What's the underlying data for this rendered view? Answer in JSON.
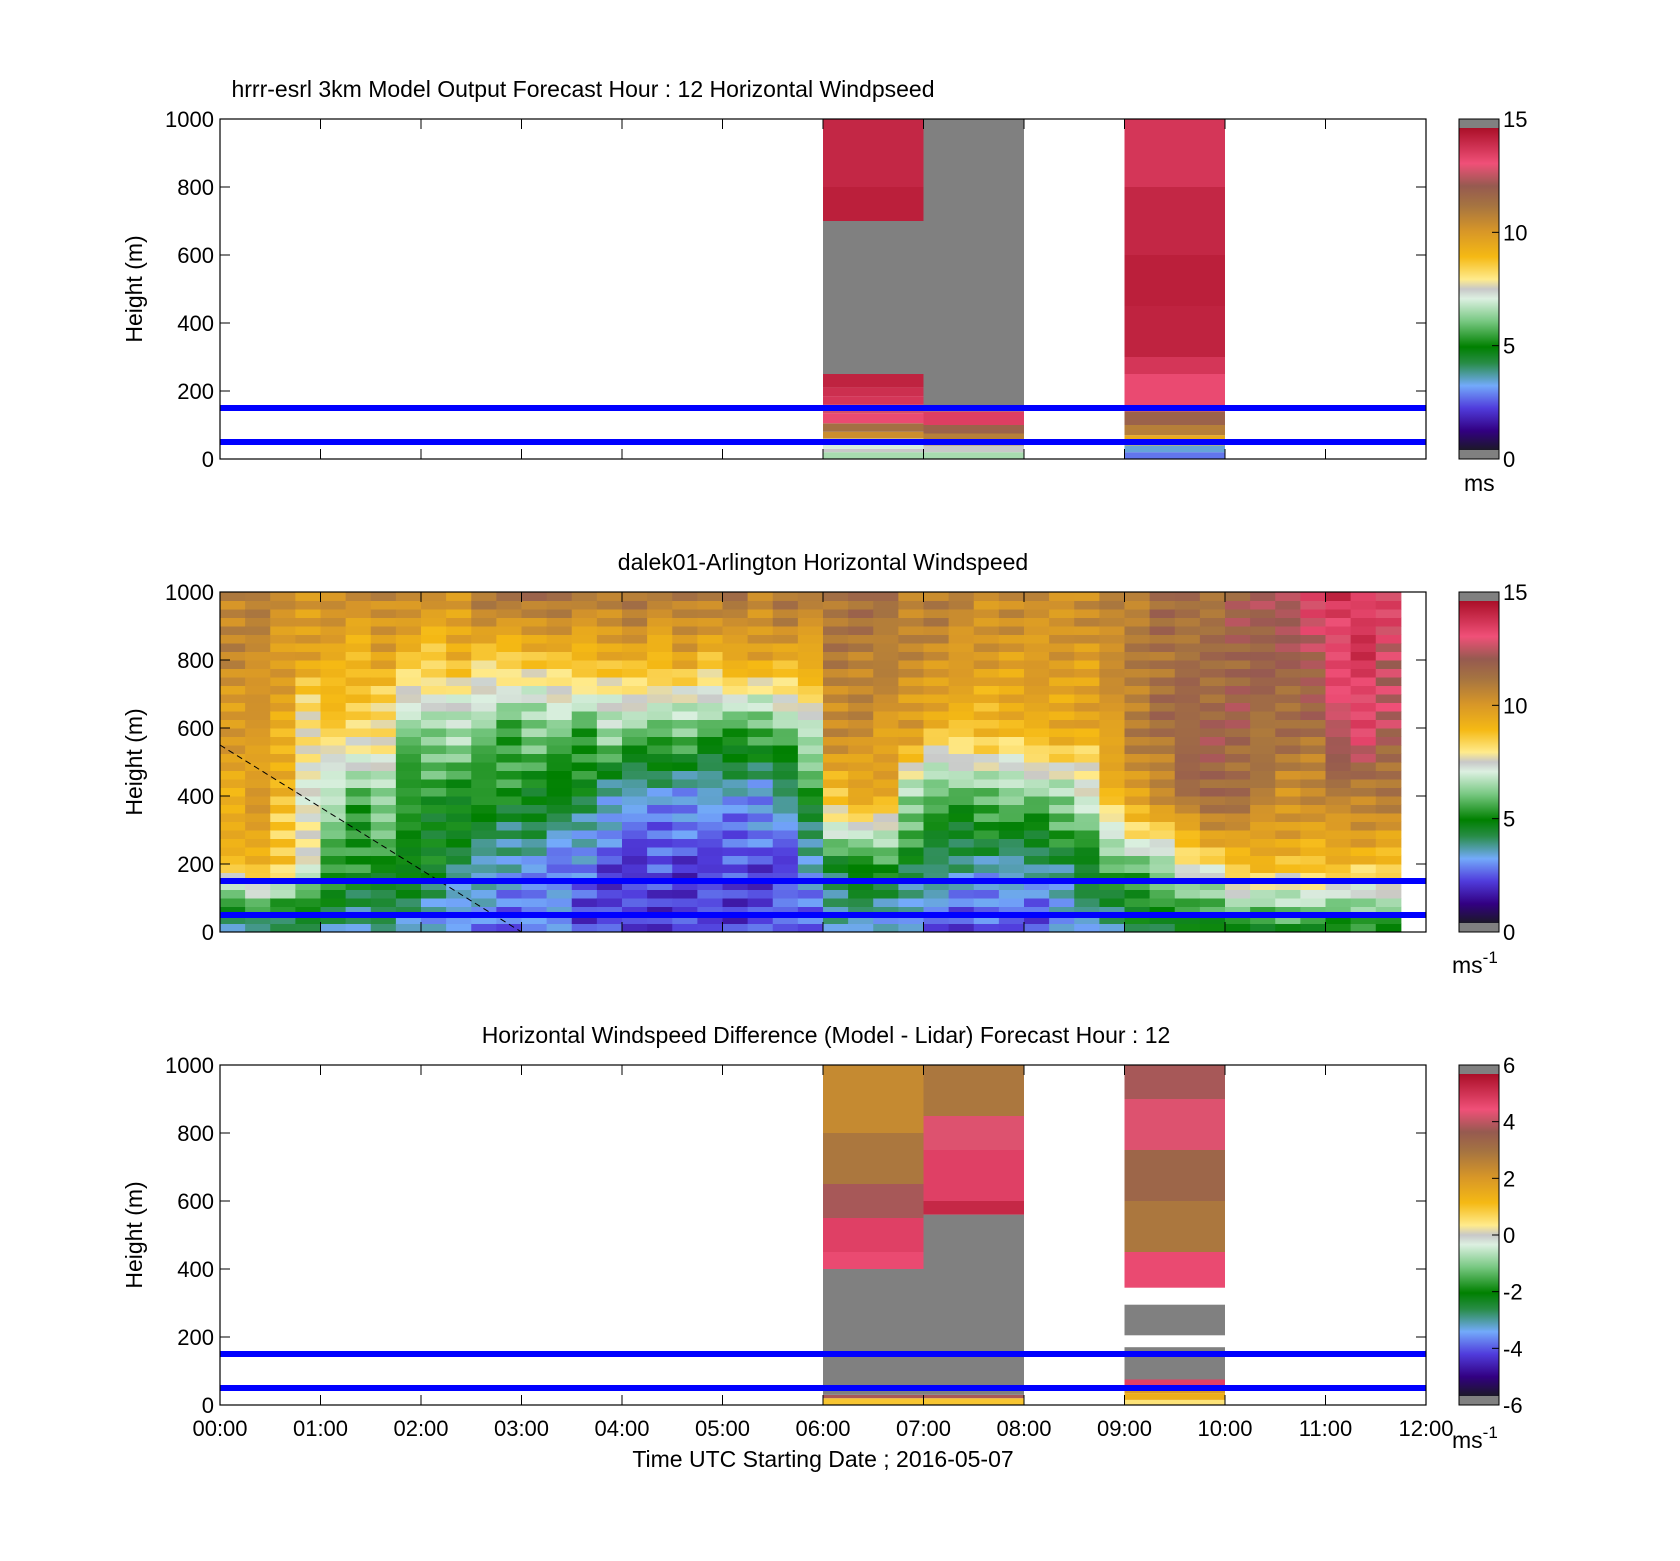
{
  "figure": {
    "xlabel": "Time UTC  Starting Date ; 2016-05-07"
  },
  "chart_data": [
    {
      "type": "heatmap",
      "title": "hrrr-esrl 3km Model Output   Forecast Hour : 12 Horizontal Windpseed",
      "ylabel": "Height (m)",
      "xlabel": "",
      "xlim": [
        0,
        12
      ],
      "ylim": [
        0,
        1000
      ],
      "yticks": [
        "0",
        "200",
        "400",
        "600",
        "800",
        "1000"
      ],
      "xticks": [],
      "colorbar": {
        "min": 0,
        "max": 15,
        "ticks": [
          "0",
          "5",
          "10",
          "15"
        ],
        "unit": "ms",
        "unit_sup": ""
      },
      "blue_lines_m": [
        50,
        150
      ],
      "missing_color": "#808080",
      "columns": [
        {
          "t0": 6,
          "t1": 7,
          "cells": [
            [
              0,
              20,
              6.5
            ],
            [
              20,
              30,
              7.5
            ],
            [
              30,
              60,
              7.0
            ],
            [
              60,
              80,
              10.5
            ],
            [
              80,
              105,
              11.5
            ],
            [
              105,
              135,
              13.5
            ],
            [
              135,
              160,
              13.0
            ],
            [
              160,
              185,
              14.0
            ],
            [
              185,
              210,
              14.2
            ],
            [
              210,
              250,
              14.5
            ],
            [
              250,
              700,
              null
            ],
            [
              700,
              800,
              14.6
            ],
            [
              800,
              1000,
              14.4
            ]
          ]
        },
        {
          "t0": 7,
          "t1": 8,
          "cells": [
            [
              0,
              20,
              6.5
            ],
            [
              20,
              40,
              7.5
            ],
            [
              40,
              75,
              11.0
            ],
            [
              75,
              100,
              12.0
            ],
            [
              100,
              140,
              13.8
            ],
            [
              140,
              1000,
              null
            ]
          ]
        },
        {
          "t0": 9,
          "t1": 10,
          "cells": [
            [
              0,
              20,
              2.5
            ],
            [
              20,
              40,
              3.2
            ],
            [
              40,
              70,
              9.5
            ],
            [
              70,
              100,
              11.0
            ],
            [
              100,
              140,
              12.0
            ],
            [
              140,
              250,
              13.5
            ],
            [
              250,
              300,
              14.0
            ],
            [
              300,
              450,
              14.5
            ],
            [
              450,
              600,
              14.6
            ],
            [
              600,
              800,
              14.4
            ],
            [
              800,
              1000,
              14.0
            ]
          ]
        }
      ]
    },
    {
      "type": "heatmap",
      "title": "dalek01-Arlington  Horizontal Windspeed",
      "ylabel": "Height (m)",
      "xlabel": "",
      "xlim": [
        0,
        12
      ],
      "ylim": [
        0,
        1000
      ],
      "yticks": [
        "0",
        "200",
        "400",
        "600",
        "800",
        "1000"
      ],
      "xticks": [],
      "colorbar": {
        "min": 0,
        "max": 15,
        "ticks": [
          "0",
          "5",
          "10",
          "15"
        ],
        "unit": "ms",
        "unit_sup": "-1"
      },
      "blue_lines_m": [
        50,
        150
      ],
      "dashed_line": {
        "x": [
          0,
          3.0
        ],
        "y": [
          550,
          0
        ]
      },
      "profile_step_hours": 0.25,
      "profile_end_hours": 11.75,
      "profile_jitter": 0.9,
      "profiles": [
        [
          2.5,
          9.0,
          9.5,
          10.0,
          10.5,
          11.0
        ],
        [
          3.0,
          9.5,
          10.0,
          10.0,
          10.5,
          11.0
        ],
        [
          3.5,
          8.5,
          9.0,
          9.5,
          10.0,
          10.5
        ],
        [
          3.5,
          7.5,
          7.5,
          7.8,
          9.5,
          10.5
        ],
        [
          3.5,
          5.5,
          6.5,
          8.5,
          9.5,
          10.5
        ],
        [
          3.5,
          5.0,
          5.5,
          8.5,
          9.0,
          10.5
        ],
        [
          3.5,
          5.0,
          6.5,
          8.0,
          9.5,
          11.0
        ],
        [
          3.0,
          5.0,
          5.0,
          6.0,
          9.0,
          10.5
        ],
        [
          3.0,
          4.5,
          5.0,
          6.5,
          8.5,
          10.5
        ],
        [
          2.5,
          4.0,
          5.0,
          6.5,
          9.0,
          10.5
        ],
        [
          2.5,
          3.5,
          5.0,
          6.0,
          8.5,
          11.5
        ],
        [
          2.5,
          3.0,
          5.0,
          5.5,
          8.5,
          11.5
        ],
        [
          2.5,
          3.0,
          4.8,
          6.0,
          8.5,
          12.0
        ],
        [
          3.0,
          2.5,
          4.5,
          6.0,
          9.0,
          11.5
        ],
        [
          2.0,
          2.5,
          4.5,
          5.5,
          9.0,
          11.0
        ],
        [
          2.0,
          2.0,
          3.5,
          6.5,
          9.0,
          11.5
        ],
        [
          2.0,
          1.8,
          3.0,
          6.0,
          9.5,
          11.5
        ],
        [
          2.0,
          2.0,
          3.0,
          6.0,
          9.0,
          11.0
        ],
        [
          2.0,
          1.8,
          3.0,
          6.0,
          9.5,
          11.5
        ],
        [
          2.0,
          2.0,
          3.0,
          5.5,
          9.0,
          11.0
        ],
        [
          2.0,
          2.0,
          3.0,
          5.5,
          9.5,
          11.5
        ],
        [
          2.0,
          2.0,
          3.0,
          5.5,
          9.5,
          11.0
        ],
        [
          2.5,
          2.0,
          3.5,
          6.0,
          9.5,
          11.5
        ],
        [
          2.5,
          3.0,
          5.0,
          7.0,
          9.5,
          11.0
        ],
        [
          3.0,
          4.5,
          9.0,
          10.5,
          11.0,
          11.5
        ],
        [
          3.0,
          5.0,
          9.5,
          10.5,
          11.0,
          11.5
        ],
        [
          3.0,
          5.0,
          9.5,
          10.0,
          11.0,
          11.5
        ],
        [
          2.5,
          4.5,
          6.5,
          10.0,
          10.5,
          11.0
        ],
        [
          2.0,
          4.0,
          5.5,
          9.0,
          10.5,
          11.0
        ],
        [
          2.0,
          3.5,
          5.5,
          9.0,
          10.0,
          11.0
        ],
        [
          2.0,
          3.5,
          6.0,
          9.0,
          10.0,
          10.5
        ],
        [
          2.0,
          3.5,
          6.0,
          9.0,
          10.0,
          10.5
        ],
        [
          2.0,
          3.5,
          6.0,
          9.5,
          10.0,
          10.5
        ],
        [
          2.5,
          4.0,
          6.5,
          9.5,
          10.0,
          10.5
        ],
        [
          3.0,
          4.5,
          7.0,
          9.5,
          10.0,
          10.5
        ],
        [
          3.5,
          5.5,
          9.0,
          10.0,
          10.5,
          11.0
        ],
        [
          4.0,
          6.0,
          10.0,
          11.0,
          11.0,
          11.0
        ],
        [
          4.0,
          6.5,
          10.5,
          11.5,
          11.5,
          11.5
        ],
        [
          4.5,
          7.5,
          11.5,
          12.0,
          11.5,
          11.5
        ],
        [
          4.0,
          8.0,
          12.0,
          12.0,
          11.5,
          11.5
        ],
        [
          4.5,
          9.0,
          11.5,
          12.0,
          12.0,
          12.0
        ],
        [
          4.5,
          9.0,
          11.0,
          11.5,
          12.0,
          12.5
        ],
        [
          4.5,
          9.0,
          10.5,
          11.5,
          12.0,
          13.0
        ],
        [
          4.5,
          9.0,
          10.5,
          11.5,
          12.5,
          13.5
        ],
        [
          4.5,
          9.0,
          11.0,
          13.0,
          13.5,
          14.0
        ],
        [
          4.5,
          9.0,
          11.0,
          13.5,
          14.0,
          14.0
        ],
        [
          4.5,
          9.0,
          11.0,
          12.5,
          13.0,
          13.5
        ]
      ]
    },
    {
      "type": "heatmap",
      "title": "Horizontal Windspeed Difference (Model - Lidar) Forecast Hour : 12",
      "ylabel": "Height (m)",
      "xlabel": "",
      "xlim": [
        0,
        12
      ],
      "ylim": [
        0,
        1000
      ],
      "yticks": [
        "0",
        "200",
        "400",
        "600",
        "800",
        "1000"
      ],
      "xticks": [
        "00:00",
        "01:00",
        "02:00",
        "03:00",
        "04:00",
        "05:00",
        "06:00",
        "07:00",
        "08:00",
        "09:00",
        "10:00",
        "11:00",
        "12:00"
      ],
      "colorbar": {
        "min": -6,
        "max": 6,
        "ticks": [
          "-6",
          "-4",
          "-2",
          "0",
          "2",
          "4",
          "6"
        ],
        "unit": "ms",
        "unit_sup": "-1"
      },
      "blue_lines_m": [
        50,
        150
      ],
      "missing_color": "#808080",
      "columns": [
        {
          "t0": 6,
          "t1": 7,
          "cells": [
            [
              0,
              20,
              1.0
            ],
            [
              20,
              30,
              4.0
            ],
            [
              30,
              400,
              null
            ],
            [
              400,
              450,
              4.8
            ],
            [
              450,
              550,
              5.0
            ],
            [
              550,
              650,
              4.0
            ],
            [
              650,
              800,
              3.0
            ],
            [
              800,
              1000,
              2.5
            ]
          ]
        },
        {
          "t0": 7,
          "t1": 8,
          "cells": [
            [
              0,
              20,
              1.0
            ],
            [
              20,
              30,
              4.0
            ],
            [
              30,
              560,
              null
            ],
            [
              560,
              600,
              5.5
            ],
            [
              600,
              750,
              5.0
            ],
            [
              750,
              850,
              4.5
            ],
            [
              850,
              1000,
              3.0
            ]
          ]
        },
        {
          "t0": 9,
          "t1": 10,
          "cells": [
            [
              0,
              15,
              0.5
            ],
            [
              15,
              35,
              1.5
            ],
            [
              35,
              50,
              2.0
            ],
            [
              50,
              75,
              5.0
            ],
            [
              75,
              170,
              null
            ],
            [
              205,
              295,
              null
            ],
            [
              345,
              450,
              4.8
            ],
            [
              450,
              600,
              3.0
            ],
            [
              600,
              750,
              3.5
            ],
            [
              750,
              900,
              4.5
            ],
            [
              900,
              1000,
              4.0
            ]
          ]
        }
      ]
    }
  ]
}
